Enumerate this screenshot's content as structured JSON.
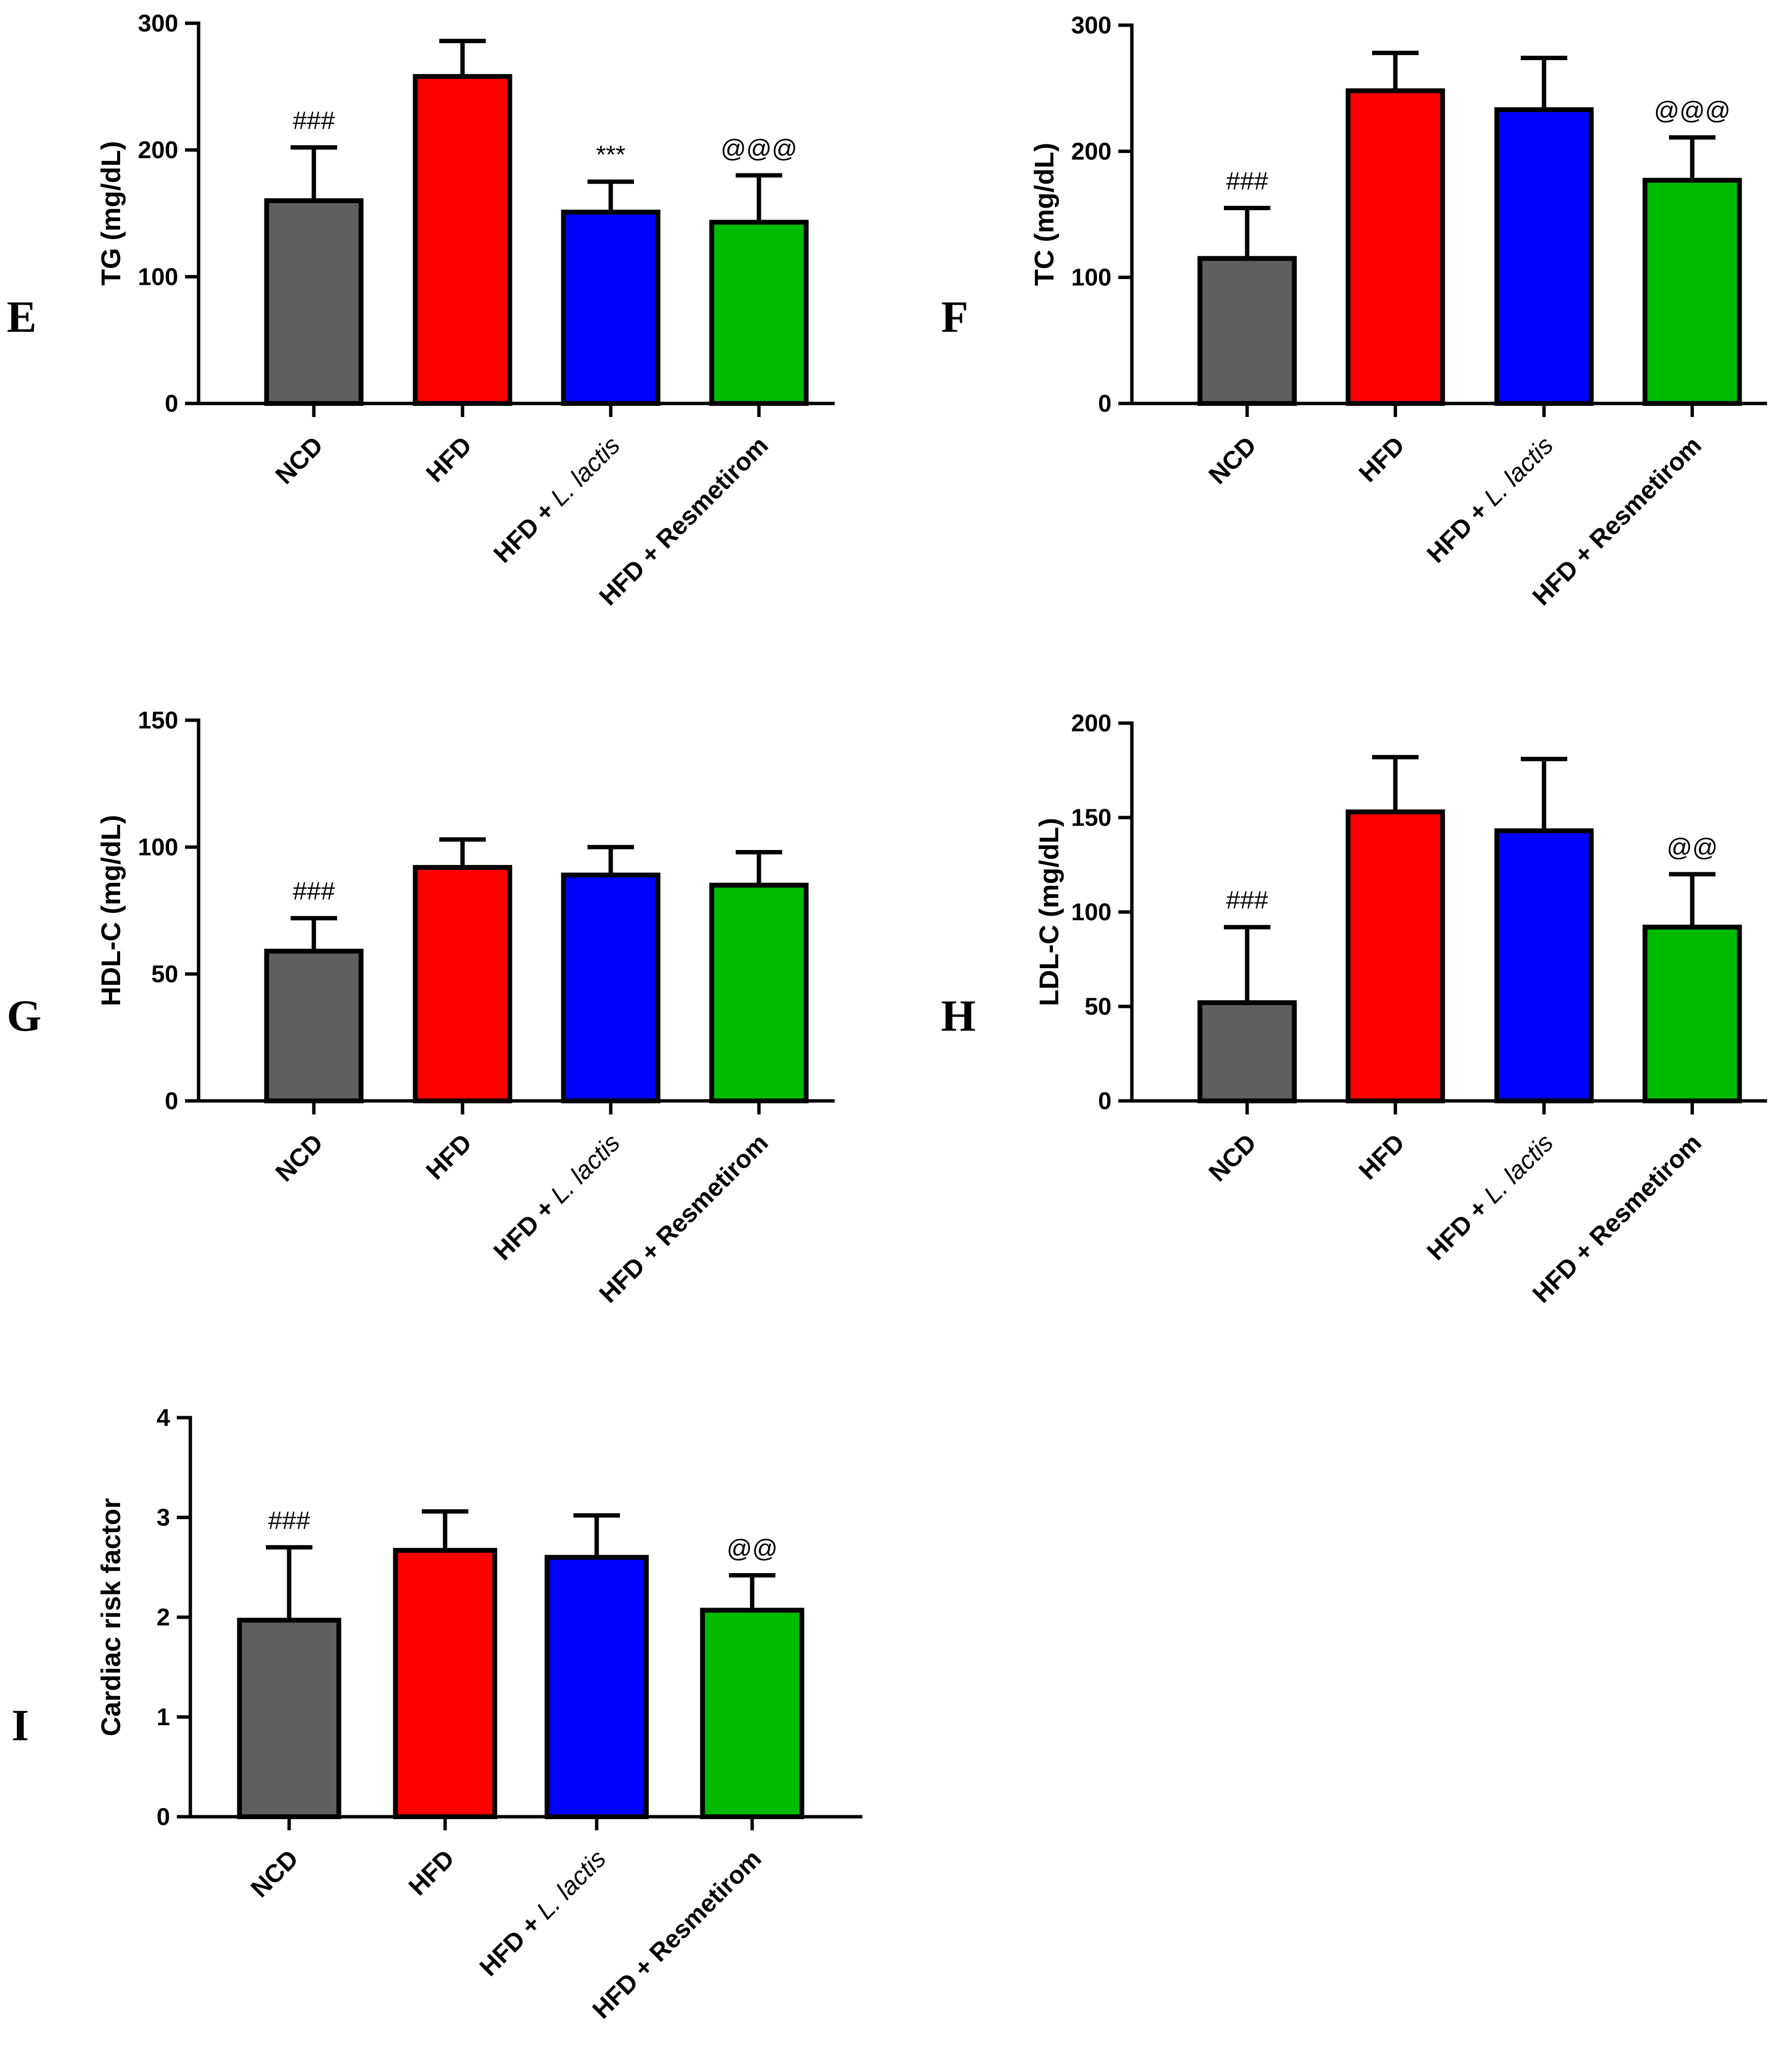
{
  "colors": {
    "NCD": "#5f5f5f",
    "HFD": "#ff0000",
    "LLactis": "#0000ff",
    "Resmetirom": "#00bb00"
  },
  "category_parts": [
    [
      {
        "t": "NCD",
        "i": false
      }
    ],
    [
      {
        "t": "HFD",
        "i": false
      }
    ],
    [
      {
        "t": "HFD + ",
        "i": false
      },
      {
        "t": "L. lactis",
        "i": true
      }
    ],
    [
      {
        "t": "HFD + Resmetirom",
        "i": false
      }
    ]
  ],
  "chart_data": [
    {
      "panel": "E",
      "type": "bar",
      "categories": [
        "NCD",
        "HFD",
        "HFD + L. lactis",
        "HFD + Resmetirom"
      ],
      "values": [
        160,
        258,
        151,
        143
      ],
      "errors": [
        42,
        28,
        24,
        37
      ],
      "significance": [
        "###",
        "",
        "***",
        "@@@"
      ],
      "ylabel": "TG (mg/dL)",
      "ylim": [
        0,
        300
      ],
      "yticks": [
        0,
        100,
        200,
        300
      ]
    },
    {
      "panel": "F",
      "type": "bar",
      "categories": [
        "NCD",
        "HFD",
        "HFD + L. lactis",
        "HFD + Resmetirom"
      ],
      "values": [
        115,
        248,
        233,
        177
      ],
      "errors": [
        40,
        30,
        41,
        34
      ],
      "significance": [
        "###",
        "",
        "",
        "@@@"
      ],
      "ylabel": "TC (mg/dL)",
      "ylim": [
        0,
        300
      ],
      "yticks": [
        0,
        100,
        200,
        300
      ]
    },
    {
      "panel": "G",
      "type": "bar",
      "categories": [
        "NCD",
        "HFD",
        "HFD + L. lactis",
        "HFD + Resmetirom"
      ],
      "values": [
        59,
        92,
        89,
        85
      ],
      "errors": [
        13,
        11,
        11,
        13
      ],
      "significance": [
        "###",
        "",
        "",
        ""
      ],
      "ylabel": "HDL-C (mg/dL)",
      "ylim": [
        0,
        150
      ],
      "yticks": [
        0,
        50,
        100,
        150
      ]
    },
    {
      "panel": "H",
      "type": "bar",
      "categories": [
        "NCD",
        "HFD",
        "HFD + L. lactis",
        "HFD + Resmetirom"
      ],
      "values": [
        52,
        153,
        143,
        92
      ],
      "errors": [
        40,
        29,
        38,
        28
      ],
      "significance": [
        "###",
        "",
        "",
        "@@"
      ],
      "ylabel": "LDL-C (mg/dL)",
      "ylim": [
        0,
        200
      ],
      "yticks": [
        0,
        50,
        100,
        150,
        200
      ]
    },
    {
      "panel": "I",
      "type": "bar",
      "categories": [
        "NCD",
        "HFD",
        "HFD + L. lactis",
        "HFD + Resmetirom"
      ],
      "values": [
        1.97,
        2.67,
        2.6,
        2.07
      ],
      "errors": [
        0.73,
        0.39,
        0.42,
        0.35
      ],
      "significance": [
        "###",
        "",
        "",
        "@@"
      ],
      "ylabel": "Cardiac risk factor",
      "ylim": [
        0,
        4
      ],
      "yticks": [
        0,
        1,
        2,
        3,
        4
      ]
    }
  ]
}
